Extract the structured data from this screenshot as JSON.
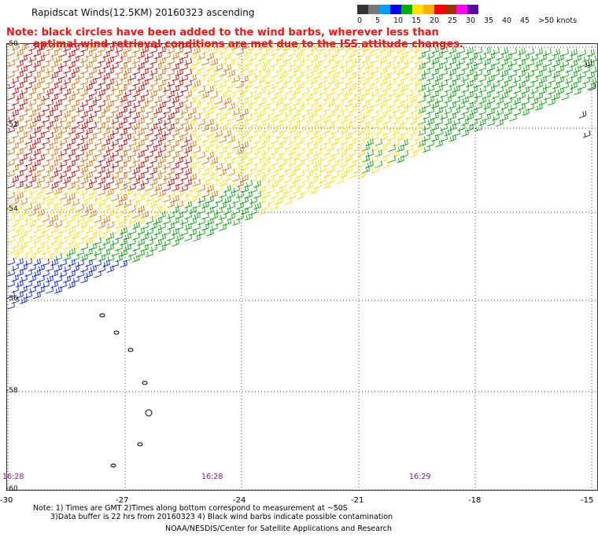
{
  "title": "Rapidscat Winds(12.5KM) 20160323 ascending",
  "note_line1": "Note: black circles have been added to the wind barbs, wherever less than",
  "note_line2": "optimal wind retrieval conditions are met due to the ISS attitude changes.",
  "legend": {
    "labels": [
      "0",
      "5",
      "10",
      "15",
      "20",
      "25",
      "30",
      "35",
      "40",
      "45",
      ">50 knots"
    ],
    "colors": [
      "#333333",
      "#777777",
      "#00a0ff",
      "#0000ff",
      "#00b000",
      "#ffe000",
      "#ffb000",
      "#ff0000",
      "#a03000",
      "#ff00ff",
      "#6000a0"
    ]
  },
  "barb_colors": {
    "yellow": "#ffdd00",
    "green": "#00a800",
    "blue": "#0018ff",
    "red": "#d00000",
    "orange": "#e07000",
    "dark": "#111111"
  },
  "lat_labels": [
    "-50",
    "-52",
    "-54",
    "-56",
    "-58",
    "-60"
  ],
  "lon_labels": [
    "-30",
    "-27",
    "-24",
    "-21",
    "-18",
    "-15"
  ],
  "time_labels": [
    "16:28",
    "16:28",
    "16:29"
  ],
  "footnote_line1": "Note: 1) Times are GMT 2)Times along bottom correspond to measurement at ~50S",
  "footnote_line2": "3)Data buffer is 22 hrs from 20160323 4) Black wind barbs indicate possible contamination",
  "credit": "NOAA/NESDIS/Center for Satellite Applications and Research"
}
